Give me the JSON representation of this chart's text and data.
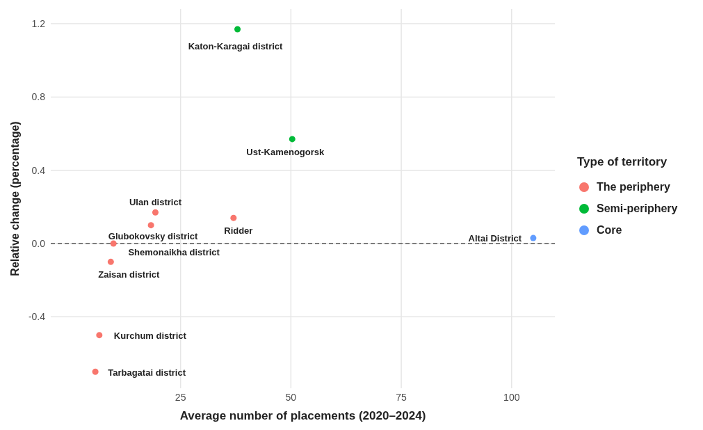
{
  "chart_data": {
    "type": "scatter",
    "xlabel": "Average number of placements (2020–2024)",
    "ylabel": "Relative change (percentage)",
    "legend_title": "Type of territory",
    "series": [
      {
        "name": "The periphery",
        "color": "#f8766d",
        "x": [
          19.3,
          18.3,
          37.0,
          9.8,
          9.2,
          6.6,
          5.7
        ],
        "values": [
          0.17,
          0.1,
          0.14,
          0.0,
          -0.1,
          -0.5,
          -0.7
        ]
      },
      {
        "name": "Semi-periphery",
        "color": "#00ba38",
        "x": [
          37.9,
          50.3
        ],
        "values": [
          1.17,
          0.57
        ]
      },
      {
        "name": "Core",
        "color": "#619cff",
        "x": [
          104.9
        ],
        "values": [
          0.03
        ]
      }
    ],
    "annotations": [
      {
        "text": "Katon-Karagai district",
        "x": 37.9,
        "y": 1.17
      },
      {
        "text": "Ust-Kamenogorsk",
        "x": 50.3,
        "y": 0.57
      },
      {
        "text": "Ulan district",
        "x": 19.3,
        "y": 0.17
      },
      {
        "text": "Glubokovsky district",
        "x": 18.3,
        "y": 0.1
      },
      {
        "text": "Ridder",
        "x": 37.0,
        "y": 0.14
      },
      {
        "text": "Shemonaikha district",
        "x": 9.8,
        "y": 0.0
      },
      {
        "text": "Zaisan district",
        "x": 9.2,
        "y": -0.1
      },
      {
        "text": "Kurchum district",
        "x": 6.6,
        "y": -0.5
      },
      {
        "text": "Tarbagatai district",
        "x": 5.7,
        "y": -0.7
      },
      {
        "text": "Altai District",
        "x": 104.9,
        "y": 0.03
      }
    ],
    "ref_lines": [
      {
        "axis": "y",
        "value": 0,
        "line_style": "dashed",
        "color": "#555555"
      }
    ],
    "xlim": [
      -4.4,
      109.8
    ],
    "xticks": [
      25,
      50,
      75,
      100
    ],
    "ylim": [
      -0.79,
      1.28
    ],
    "yticks": [
      {
        "value": -0.4,
        "label": "-0.4"
      },
      {
        "value": 0,
        "label": "0.0"
      },
      {
        "value": 0.4,
        "label": "0.4"
      },
      {
        "value": 0.8,
        "label": "0.8"
      },
      {
        "value": 1.2,
        "label": "1.2"
      }
    ],
    "grid": true,
    "legend": "right",
    "marker": "circle"
  }
}
